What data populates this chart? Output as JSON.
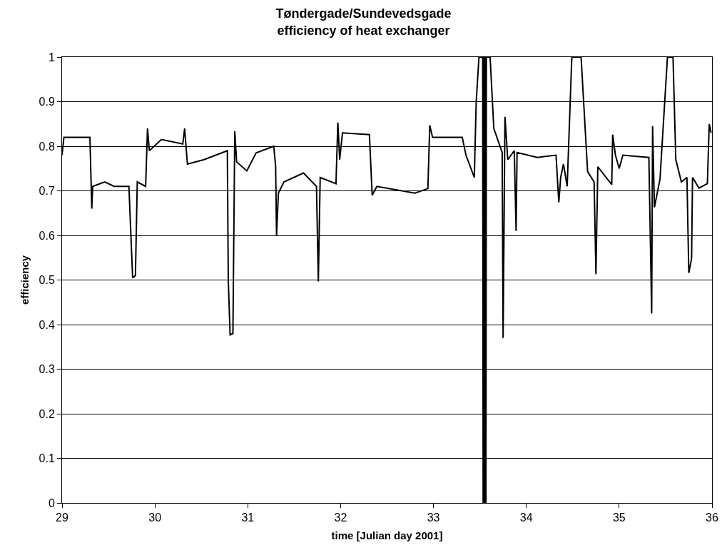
{
  "chart_data": {
    "type": "line",
    "title": "Tøndergade/Sundevedsgade\nefficiency of heat exchanger",
    "xlabel": "time [Julian day 2001]",
    "ylabel": "efficiency",
    "x": [
      29.0,
      29.02,
      29.18,
      29.3,
      29.32,
      29.33,
      29.46,
      29.56,
      29.72,
      29.76,
      29.79,
      29.81,
      29.9,
      29.92,
      29.94,
      30.07,
      30.3,
      30.32,
      30.35,
      30.53,
      30.78,
      30.79,
      30.81,
      30.84,
      30.86,
      30.88,
      30.99,
      31.09,
      31.28,
      31.3,
      31.31,
      31.33,
      31.39,
      31.6,
      31.74,
      31.76,
      31.78,
      31.95,
      31.97,
      31.99,
      32.02,
      32.31,
      32.34,
      32.39,
      32.8,
      32.94,
      32.96,
      32.99,
      33.31,
      33.35,
      33.44,
      33.46,
      33.49,
      33.53,
      33.535,
      33.54,
      33.545,
      33.55,
      33.555,
      33.56,
      33.565,
      33.57,
      33.61,
      33.65,
      33.74,
      33.75,
      33.77,
      33.8,
      33.87,
      33.89,
      33.9,
      34.12,
      34.32,
      34.35,
      34.37,
      34.4,
      34.44,
      34.49,
      34.59,
      34.66,
      34.73,
      34.75,
      34.77,
      34.92,
      34.93,
      34.96,
      35.0,
      35.04,
      35.32,
      35.35,
      35.36,
      35.38,
      35.44,
      35.52,
      35.58,
      35.61,
      35.67,
      35.73,
      35.75,
      35.78,
      35.79,
      35.86,
      35.95,
      35.97,
      35.99
    ],
    "series": [
      {
        "color": "#000000",
        "values": [
          0.78,
          0.82,
          0.82,
          0.82,
          0.66,
          0.71,
          0.72,
          0.71,
          0.71,
          0.505,
          0.51,
          0.72,
          0.71,
          0.84,
          0.79,
          0.815,
          0.805,
          0.84,
          0.76,
          0.77,
          0.79,
          0.5,
          0.377,
          0.38,
          0.834,
          0.765,
          0.745,
          0.785,
          0.8,
          0.755,
          0.6,
          0.695,
          0.72,
          0.74,
          0.71,
          0.497,
          0.73,
          0.716,
          0.853,
          0.77,
          0.83,
          0.826,
          0.69,
          0.71,
          0.695,
          0.705,
          0.847,
          0.82,
          0.82,
          0.78,
          0.73,
          0.898,
          1.0,
          1.0,
          0,
          1.0,
          0,
          1.0,
          0,
          1.0,
          0,
          1.0,
          1.0,
          0.84,
          0.786,
          0.37,
          0.866,
          0.77,
          0.79,
          0.61,
          0.786,
          0.775,
          0.78,
          0.674,
          0.73,
          0.76,
          0.71,
          1.0,
          1.0,
          0.743,
          0.72,
          0.513,
          0.754,
          0.714,
          0.826,
          0.78,
          0.75,
          0.78,
          0.775,
          0.425,
          0.845,
          0.663,
          0.727,
          1.0,
          1.0,
          0.77,
          0.72,
          0.73,
          0.516,
          0.548,
          0.73,
          0.706,
          0.716,
          0.85,
          0.83
        ]
      }
    ],
    "xlim": [
      29,
      36
    ],
    "xticks": [
      29,
      30,
      31,
      32,
      33,
      34,
      35,
      36
    ],
    "ylim": [
      0,
      1
    ],
    "yticks": [
      0,
      0.1,
      0.2,
      0.3,
      0.4,
      0.5,
      0.6,
      0.7,
      0.8,
      0.9,
      1
    ],
    "grid": "y",
    "marker": "none",
    "line_style": "solid"
  }
}
